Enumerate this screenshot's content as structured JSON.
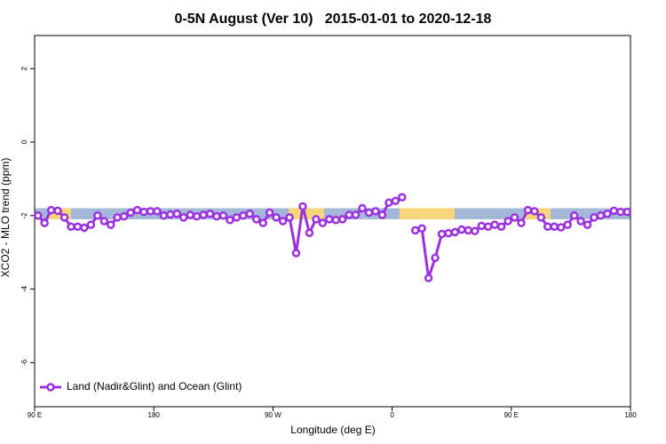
{
  "chart_data": {
    "type": "line",
    "title": "0-5N August (Ver 10)   2015-01-01 to 2020-12-18",
    "xlabel": "Longitude (deg E)",
    "ylabel": "XCO2 - MLO trend (ppm)",
    "xlim": [
      90,
      540
    ],
    "ylim": [
      -7.2,
      2.9
    ],
    "xticks": [
      {
        "value": 90,
        "label": "90 E"
      },
      {
        "value": 180,
        "label": "180"
      },
      {
        "value": 270,
        "label": "90 W"
      },
      {
        "value": 360,
        "label": "0"
      },
      {
        "value": 450,
        "label": "90 E"
      },
      {
        "value": 540,
        "label": "180"
      }
    ],
    "yticks": [
      -6,
      -4,
      -2,
      0,
      2
    ],
    "legend": "bottom-left",
    "band": {
      "ylim": [
        -2.1,
        -1.8
      ],
      "color": "#a3b8d8",
      "segments": [
        {
          "x": [
            100.7,
            117.5
          ],
          "color": "#f7d57a"
        },
        {
          "x": [
            281.8,
            308.6
          ],
          "color": "#f7d57a"
        },
        {
          "x": [
            365.6,
            407.2
          ],
          "color": "#f7d57a"
        },
        {
          "x": [
            459.6,
            479.7
          ],
          "color": "#f7d57a"
        }
      ]
    },
    "series": [
      {
        "name": "Land (Nadir&Glint) and Ocean (Glint)",
        "color": "#9b30e0",
        "x": [
          92.5,
          97.5,
          102.5,
          107.5,
          112.5,
          117.5,
          122.5,
          127.5,
          132.5,
          137.5,
          142.5,
          147.5,
          152.5,
          157.5,
          162.5,
          167.5,
          172.5,
          177.5,
          182.5,
          187.5,
          192.5,
          197.5,
          202.5,
          207.5,
          212.5,
          217.5,
          222.5,
          227.5,
          232.5,
          237.5,
          242.5,
          247.5,
          252.5,
          257.5,
          262.5,
          267.5,
          272.5,
          277.5,
          282.5,
          287.5,
          292.5,
          297.5,
          302.5,
          307.5,
          312.5,
          317.5,
          322.5,
          327.5,
          332.5,
          337.5,
          342.5,
          347.5,
          352.5,
          357.5,
          362.5,
          367.5,
          372.5,
          377.5,
          382.5,
          387.5,
          392.5,
          397.5,
          402.5,
          407.5,
          412.5,
          417.5,
          422.5,
          427.5,
          432.5,
          437.5,
          442.5,
          447.5,
          452.5,
          457.5,
          462.5,
          467.5,
          472.5,
          477.5,
          482.5,
          487.5,
          492.5,
          497.5,
          502.5,
          507.5,
          512.5,
          517.5,
          522.5,
          527.5,
          532.5,
          537.5
        ],
        "values": [
          -2.0,
          -2.2,
          -1.85,
          -1.87,
          -2.05,
          -2.3,
          -2.3,
          -2.33,
          -2.25,
          -2.0,
          -2.15,
          -2.25,
          -2.05,
          -2.02,
          -1.92,
          -1.85,
          -1.9,
          -1.88,
          -1.88,
          -2.0,
          -1.97,
          -1.95,
          -2.05,
          -1.98,
          -2.02,
          -1.98,
          -1.95,
          -2.02,
          -2.0,
          -2.12,
          -2.05,
          -2.0,
          -1.95,
          -2.1,
          -2.2,
          -1.92,
          -2.05,
          -2.15,
          -2.05,
          -3.02,
          -1.75,
          -2.47,
          -2.1,
          -2.2,
          -2.1,
          -2.12,
          -2.1,
          -1.98,
          -1.98,
          -1.8,
          -1.92,
          -1.88,
          -1.98,
          -1.65,
          -1.6,
          -1.5,
          null,
          -2.4,
          -2.35,
          -3.7,
          -3.15,
          -2.5,
          -2.48,
          -2.45,
          -2.38,
          -2.4,
          -2.42,
          -2.28,
          -2.3,
          -2.25,
          -2.3,
          -2.15,
          -2.05,
          -2.2,
          -1.85,
          -1.88,
          -2.05,
          -2.3,
          -2.3,
          -2.32,
          -2.25,
          -2.0,
          -2.15,
          -2.25,
          -2.05,
          -2.0,
          -1.95,
          -1.87,
          -1.9,
          -1.9
        ]
      }
    ]
  }
}
